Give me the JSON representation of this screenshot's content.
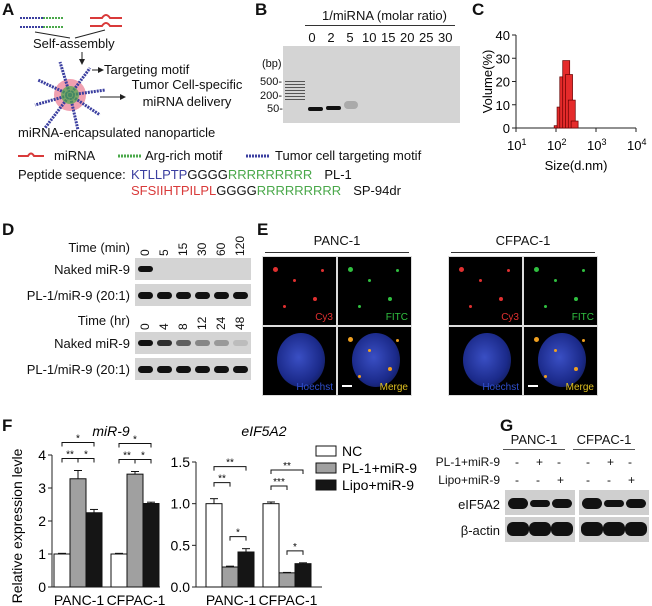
{
  "panels": {
    "A": "A",
    "B": "B",
    "C": "C",
    "D": "D",
    "E": "E",
    "F": "F",
    "G": "G"
  },
  "A": {
    "self_assembly": "Self-assembly",
    "targeting_motif": "Targeting motif",
    "delivery1": "Tumor Cell-specific",
    "delivery2": "miRNA delivery",
    "nanoparticle": "miRNA-encapsulated nanoparticle",
    "legend": {
      "mirna": "miRNA",
      "arg": "Arg-rich motif",
      "tumor": "Tumor cell targeting motif"
    },
    "peptide_label": "Peptide sequence:",
    "peptides": [
      {
        "target": "KTLLPTP",
        "linker": "GGGG",
        "arg": "RRRRRRRRR",
        "name": "PL-1"
      },
      {
        "target": "SFSIIHTPILPL",
        "linker": "GGGG",
        "arg": "RRRRRRRRR",
        "name": "SP-94dr"
      }
    ],
    "colors": {
      "blue": "#3b3fa0",
      "green": "#4aa84a",
      "red": "#d93a3a"
    }
  },
  "B": {
    "title": "1/miRNA (molar ratio)",
    "lanes": [
      "0",
      "2",
      "5",
      "10",
      "15",
      "20",
      "25",
      "30"
    ],
    "bp": "(bp)",
    "markers": [
      "500-",
      "200-",
      "50-"
    ]
  },
  "C": {
    "chart_data": {
      "type": "bar",
      "title": "",
      "xlabel": "Size(d.nm)",
      "ylabel": "Volume(%)",
      "xscale": "log",
      "xlim": [
        10,
        10000
      ],
      "ylim": [
        0,
        40
      ],
      "x": [
        110,
        130,
        152,
        180,
        212,
        248,
        292
      ],
      "values": [
        1,
        9,
        22,
        29,
        23,
        12,
        3
      ],
      "yticks": [
        "0",
        "10",
        "20",
        "30",
        "40"
      ],
      "xticks": [
        {
          "base": "10",
          "exp": "1"
        },
        {
          "base": "10",
          "exp": "2"
        },
        {
          "base": "10",
          "exp": "3"
        },
        {
          "base": "10",
          "exp": "4"
        }
      ],
      "color": "#e52b2b"
    }
  },
  "D": {
    "time_min_label": "Time (min)",
    "time_min": [
      "0",
      "5",
      "15",
      "30",
      "60",
      "120"
    ],
    "time_hr_label": "Time (hr)",
    "time_hr": [
      "0",
      "4",
      "8",
      "12",
      "24",
      "48"
    ],
    "naked": "Naked miR-9",
    "pl1": "PL-1/miR-9 (20:1)",
    "naked_min_intensity": [
      1,
      0,
      0,
      0,
      0,
      0
    ],
    "naked_hr_intensity": [
      1,
      0.85,
      0.6,
      0.4,
      0.3,
      0.12
    ]
  },
  "E": {
    "cells": [
      "PANC-1",
      "CFPAC-1"
    ],
    "channels": [
      "Cy3",
      "FITC",
      "Hoechst",
      "Merge"
    ]
  },
  "F": {
    "chart_data": [
      {
        "type": "bar",
        "title": "miR-9",
        "ylabel": "Relative expression levle",
        "ylim": [
          0,
          4
        ],
        "yticks": [
          "0",
          "1",
          "2",
          "3",
          "4"
        ],
        "categories": [
          "PANC-1",
          "CFPAC-1"
        ],
        "series": [
          {
            "name": "NC",
            "values": [
              1.0,
              1.0
            ],
            "err": [
              0.02,
              0.02
            ]
          },
          {
            "name": "PL-1+miR-9",
            "values": [
              3.28,
              3.42
            ],
            "err": [
              0.25,
              0.08
            ]
          },
          {
            "name": "Lipo+miR-9",
            "values": [
              2.25,
              2.53
            ],
            "err": [
              0.1,
              0.04
            ]
          }
        ],
        "sig": [
          [
            "*",
            "**",
            "*"
          ],
          [
            "*",
            "**",
            "*"
          ]
        ]
      },
      {
        "type": "bar",
        "title": "eIF5A2",
        "ylabel": "",
        "ylim": [
          0,
          1.5
        ],
        "yticks": [
          "0.0",
          "0.5",
          "1.0",
          "1.5"
        ],
        "categories": [
          "PANC-1",
          "CFPAC-1"
        ],
        "series": [
          {
            "name": "NC",
            "values": [
              1.0,
              1.0
            ],
            "err": [
              0.06,
              0.02
            ]
          },
          {
            "name": "PL-1+miR-9",
            "values": [
              0.24,
              0.17
            ],
            "err": [
              0.01,
              0.005
            ]
          },
          {
            "name": "Lipo+miR-9",
            "values": [
              0.42,
              0.28
            ],
            "err": [
              0.04,
              0.01
            ]
          }
        ],
        "sig": [
          [
            "**",
            "**",
            "*"
          ],
          [
            "**",
            "***",
            "*"
          ]
        ]
      }
    ],
    "legend": [
      "NC",
      "PL-1+miR-9",
      "Lipo+miR-9"
    ],
    "colors": [
      "#ffffff",
      "#a0a0a0",
      "#151515"
    ]
  },
  "G": {
    "cells": [
      "PANC-1",
      "CFPAC-1"
    ],
    "row1": "PL-1+miR-9",
    "row2": "Lipo+miR-9",
    "signs1": [
      "-",
      "+",
      "-",
      "-",
      "+",
      "-"
    ],
    "signs2": [
      "-",
      "-",
      "+",
      "-",
      "-",
      "+"
    ],
    "protein": "eIF5A2",
    "control": "β-actin",
    "eif_intensity": [
      1,
      0.5,
      0.75,
      1,
      0.45,
      0.85
    ]
  }
}
